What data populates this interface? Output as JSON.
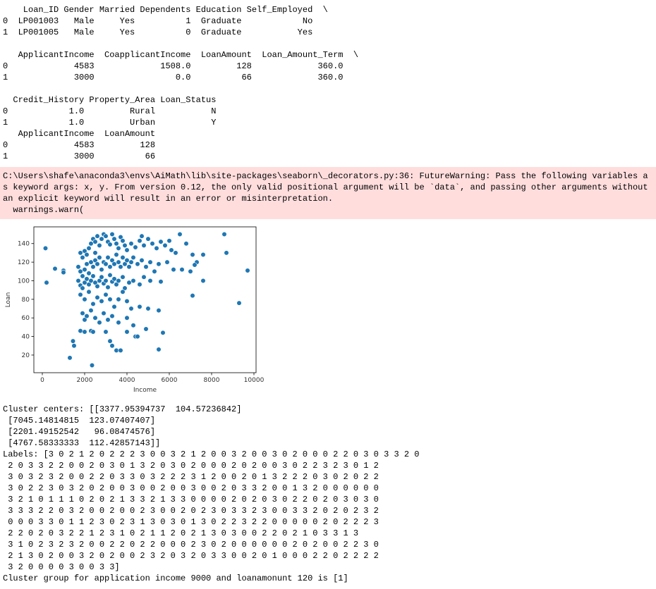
{
  "outputs_before": [
    [
      "    Loan_ID Gender Married Dependents Education Self_Employed  \\",
      "0  LP001003   Male     Yes          1  Graduate            No",
      "1  LP001005   Male     Yes          0  Graduate           Yes"
    ],
    [
      "   ApplicantIncome  CoapplicantIncome  LoanAmount  Loan_Amount_Term  \\",
      "0             4583             1508.0         128             360.0",
      "1             3000                0.0          66             360.0"
    ],
    [
      "  Credit_History Property_Area Loan_Status",
      "0            1.0         Rural           N",
      "1            1.0         Urban           Y",
      "   ApplicantIncome  LoanAmount",
      "0             4583         128",
      "1             3000          66"
    ]
  ],
  "warning": [
    "C:\\Users\\shafe\\anaconda3\\envs\\AiMath\\lib\\site-packages\\seaborn\\_decorators.py:36: FutureWarning: Pass the following variables a",
    "s keyword args: x, y. From version 0.12, the only valid positional argument will be `data`, and passing other arguments without",
    "an explicit keyword will result in an error or misinterpretation.",
    "  warnings.warn("
  ],
  "chart_data": {
    "type": "scatter",
    "xlabel": "Income",
    "ylabel": "Loan",
    "color": "#1f77b4",
    "xlim": [
      -400,
      10100
    ],
    "ylim": [
      1,
      158
    ],
    "xticks": [
      0,
      2000,
      4000,
      6000,
      8000,
      10000
    ],
    "yticks": [
      20,
      40,
      60,
      80,
      100,
      120,
      140
    ],
    "x": [
      1800,
      1900,
      2000,
      2100,
      2200,
      2300,
      2400,
      2500,
      2600,
      2500,
      2700,
      2800,
      2900,
      3000,
      3100,
      3200,
      3300,
      3400,
      3500,
      3600,
      3700,
      3800,
      3900,
      4000,
      4200,
      4400,
      4600,
      4700,
      4800,
      5000,
      5200,
      5400,
      5600,
      5800,
      1700,
      1800,
      1900,
      2000,
      2100,
      2200,
      2300,
      2400,
      2500,
      2600,
      2700,
      2800,
      2900,
      3000,
      3100,
      3200,
      3300,
      3400,
      3500,
      3600,
      3700,
      3800,
      3900,
      4000,
      4100,
      4200,
      4300,
      4500,
      4700,
      4900,
      5100,
      5300,
      5500,
      5900,
      1700,
      1800,
      1900,
      2000,
      2100,
      2200,
      2300,
      2400,
      2500,
      2600,
      2700,
      2800,
      2900,
      3000,
      3100,
      3200,
      3300,
      3400,
      3500,
      3600,
      3800,
      3900,
      4100,
      4300,
      4600,
      4800,
      5100,
      5600,
      1800,
      2000,
      2200,
      2400,
      2600,
      2800,
      3000,
      3200,
      3400,
      3600,
      3800,
      4000,
      4200,
      4600,
      1900,
      2000,
      2100,
      2300,
      2500,
      2700,
      2900,
      3100,
      3300,
      3600,
      4000,
      4300,
      150,
      200,
      600,
      1000,
      1000,
      1300,
      1450,
      1500,
      2350,
      1800,
      2000,
      2300,
      2400,
      3000,
      3200,
      3300,
      3500,
      3700,
      4000,
      4400,
      4500,
      4900,
      5500,
      5700,
      5500,
      5000,
      7100,
      9300,
      8600,
      8700,
      9700,
      7600,
      7100,
      7300,
      7200,
      7000,
      7600,
      6500,
      6800,
      6000,
      6100,
      6300,
      6600,
      6200
    ],
    "values": [
      130,
      125,
      132,
      128,
      135,
      140,
      145,
      142,
      148,
      130,
      138,
      145,
      150,
      148,
      142,
      139,
      150,
      145,
      140,
      135,
      147,
      143,
      138,
      133,
      140,
      136,
      143,
      148,
      138,
      145,
      140,
      135,
      142,
      138,
      115,
      110,
      105,
      112,
      118,
      108,
      120,
      115,
      122,
      118,
      125,
      112,
      120,
      118,
      125,
      115,
      122,
      118,
      128,
      120,
      115,
      125,
      118,
      122,
      115,
      120,
      125,
      118,
      122,
      115,
      120,
      110,
      118,
      120,
      100,
      95,
      92,
      98,
      102,
      96,
      100,
      105,
      98,
      94,
      100,
      104,
      97,
      100,
      93,
      106,
      99,
      102,
      96,
      100,
      104,
      92,
      98,
      100,
      96,
      104,
      100,
      99,
      85,
      80,
      88,
      75,
      82,
      78,
      85,
      80,
      72,
      80,
      88,
      78,
      70,
      72,
      65,
      58,
      62,
      68,
      60,
      55,
      65,
      58,
      62,
      55,
      60,
      52,
      135,
      98,
      113,
      111,
      109,
      17,
      35,
      30,
      9,
      46,
      45,
      46,
      45,
      45,
      35,
      30,
      25,
      25,
      45,
      40,
      40,
      48,
      26,
      44,
      68,
      70,
      84,
      76,
      150,
      130,
      111,
      128,
      128,
      120,
      117,
      110,
      100,
      150,
      140,
      143,
      133,
      130,
      112,
      112
    ]
  },
  "outputs_after": [
    "Cluster centers: [[3377.95394737  104.57236842]",
    " [7045.14814815  123.07407407]",
    " [2201.49152542   96.08474576]",
    " [4767.58333333  112.42857143]]",
    "Labels: [3 0 2 1 2 0 2 2 2 3 0 0 3 2 1 2 0 0 3 2 0 0 3 0 2 0 0 0 2 2 0 3 0 3 3 2 0",
    " 2 0 3 3 2 2 0 0 2 0 3 0 1 3 2 0 3 0 2 0 0 0 2 0 2 0 0 3 0 2 2 3 2 3 0 1 2",
    " 3 0 3 2 3 2 0 0 2 2 0 3 3 0 3 2 2 2 3 1 2 0 0 2 0 1 3 2 2 2 0 3 0 2 0 2 2",
    " 3 0 2 2 3 0 3 2 0 2 0 0 3 0 0 2 0 0 3 0 0 2 0 3 3 2 0 0 1 3 2 0 0 0 0 0 0",
    " 3 2 1 0 1 1 1 0 2 0 2 1 3 3 2 1 3 3 0 0 0 0 2 0 2 0 3 0 2 2 0 2 0 3 0 3 0",
    " 3 3 3 2 2 0 3 2 0 0 2 0 0 2 3 0 0 2 0 2 3 0 3 3 2 3 0 0 3 3 2 0 2 0 2 3 2",
    " 0 0 0 3 3 0 1 1 2 3 0 2 3 1 3 0 3 0 1 3 0 2 2 3 2 2 0 0 0 0 0 2 0 2 2 2 3",
    " 2 2 0 2 0 3 2 2 1 2 3 1 0 2 1 1 2 0 2 1 3 0 3 0 0 2 2 0 2 1 0 3 3 1 3",
    " 3 1 0 2 3 2 3 2 0 0 2 2 0 2 2 0 0 0 2 3 0 2 0 0 0 0 0 0 2 0 2 0 0 2 2 3 0",
    " 2 1 3 0 2 0 0 3 2 0 2 0 0 2 3 2 0 3 2 0 3 3 0 0 2 0 1 0 0 0 2 2 0 2 2 2 2",
    " 3 2 0 0 0 0 3 0 0 3 3]",
    "Cluster group for application income 9000 and loanamonunt 120 is [1]"
  ]
}
